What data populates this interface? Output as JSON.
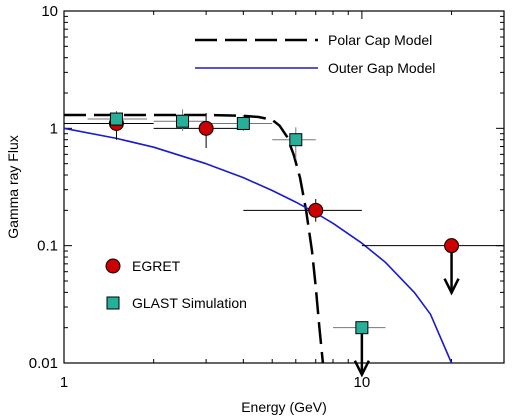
{
  "chart_data": {
    "type": "scatter",
    "xlabel": "Energy    (GeV)",
    "ylabel": "Gamma ray Flux",
    "xscale": "log",
    "yscale": "log",
    "xlim": [
      1,
      30
    ],
    "ylim": [
      0.01,
      10
    ],
    "x_ticks": [
      {
        "value": 1,
        "label": "1"
      },
      {
        "value": 10,
        "label": "10"
      }
    ],
    "y_ticks": [
      {
        "value": 0.01,
        "label": "0.01"
      },
      {
        "value": 0.1,
        "label": "0.1"
      },
      {
        "value": 1,
        "label": "1"
      },
      {
        "value": 10,
        "label": "10"
      }
    ],
    "grid": false,
    "legend_position": "top-right",
    "series": [
      {
        "name": "Polar Cap Model",
        "kind": "line",
        "style": "dashed",
        "color": "#000000",
        "x": [
          1,
          2,
          3,
          4,
          4.5,
          5,
          5.3,
          5.6,
          5.9,
          6.2,
          6.5,
          6.8,
          7.0,
          7.2,
          7.4
        ],
        "y": [
          1.3,
          1.3,
          1.3,
          1.28,
          1.25,
          1.18,
          1.05,
          0.85,
          0.6,
          0.38,
          0.2,
          0.09,
          0.045,
          0.02,
          0.01
        ]
      },
      {
        "name": "Outer Gap Model",
        "kind": "line",
        "style": "solid",
        "color": "#1a1ad0",
        "x": [
          1,
          1.5,
          2,
          3,
          4,
          5,
          6,
          7,
          8,
          10,
          12,
          15,
          17,
          20
        ],
        "y": [
          1.0,
          0.82,
          0.69,
          0.5,
          0.38,
          0.295,
          0.235,
          0.19,
          0.155,
          0.105,
          0.072,
          0.04,
          0.026,
          0.01
        ]
      },
      {
        "name": "EGRET",
        "kind": "points",
        "marker": "circle",
        "color": "#cc0000",
        "points": [
          {
            "x": 1.5,
            "y": 1.1,
            "xerr": [
              1.0,
              2.0
            ],
            "yerr": [
              0.8,
              1.4
            ]
          },
          {
            "x": 3.0,
            "y": 1.0,
            "xerr": [
              2.0,
              4.0
            ],
            "yerr": [
              0.68,
              1.35
            ]
          },
          {
            "x": 7.0,
            "y": 0.2,
            "xerr": [
              4.0,
              10.0
            ],
            "yerr": [
              0.16,
              0.25
            ]
          },
          {
            "x": 20.0,
            "y": 0.1,
            "xerr": [
              10.0,
              30.0
            ],
            "upper_limit": true
          }
        ]
      },
      {
        "name": "GLAST Simulation",
        "kind": "points",
        "marker": "square",
        "color": "#26b09a",
        "points": [
          {
            "x": 1.5,
            "y": 1.2,
            "xerr": [
              1.2,
              1.9
            ],
            "yerr": [
              1.08,
              1.4
            ]
          },
          {
            "x": 2.5,
            "y": 1.15,
            "xerr": [
              2.0,
              3.0
            ],
            "yerr": [
              0.95,
              1.45
            ]
          },
          {
            "x": 4.0,
            "y": 1.1,
            "xerr": [
              3.0,
              5.0
            ],
            "yerr": [
              0.95,
              1.3
            ]
          },
          {
            "x": 6.0,
            "y": 0.8,
            "xerr": [
              5.0,
              7.0
            ],
            "yerr": [
              0.55,
              1.02
            ]
          },
          {
            "x": 10.0,
            "y": 0.02,
            "xerr": [
              8.0,
              12.0
            ],
            "upper_limit": true
          }
        ]
      }
    ],
    "legend": {
      "polar_cap": "Polar Cap Model",
      "outer_gap": "Outer Gap Model",
      "egret": "EGRET",
      "glast": "GLAST Simulation"
    }
  }
}
